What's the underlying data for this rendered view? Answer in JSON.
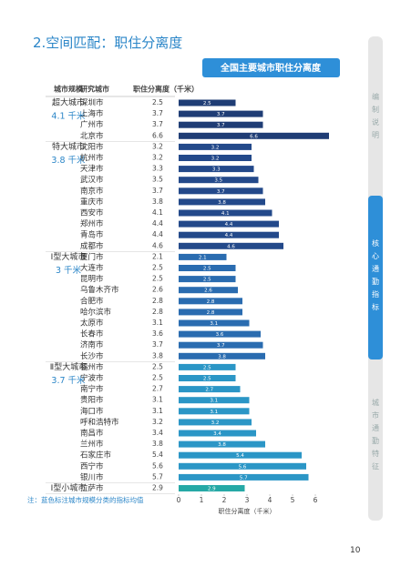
{
  "header": {
    "title": "2.空间匹配：职住分离度"
  },
  "chart_data": {
    "type": "bar",
    "title": "全国主要城市职住分离度",
    "column_headers": [
      "城市规模",
      "研究城市",
      "职住分离度（千米）"
    ],
    "groups": [
      {
        "name": "超大城市",
        "mean_label": "4.1 千米",
        "color": "#1f3d75",
        "categories": [
          "深圳市",
          "上海市",
          "广州市",
          "北京市"
        ],
        "values": [
          2.5,
          3.7,
          3.7,
          6.6
        ]
      },
      {
        "name": "特大城市",
        "mean_label": "3.8 千米",
        "color": "#23498a",
        "categories": [
          "沈阳市",
          "杭州市",
          "天津市",
          "武汉市",
          "南京市",
          "重庆市",
          "西安市",
          "郑州市",
          "青岛市",
          "成都市"
        ],
        "values": [
          3.2,
          3.2,
          3.3,
          3.5,
          3.7,
          3.8,
          4.1,
          4.4,
          4.4,
          4.6
        ]
      },
      {
        "name": "Ⅰ型大城市",
        "mean_label": "3 千米",
        "color": "#2a6cb0",
        "categories": [
          "厦门市",
          "大连市",
          "昆明市",
          "乌鲁木齐市",
          "合肥市",
          "哈尔滨市",
          "太原市",
          "长春市",
          "济南市",
          "长沙市"
        ],
        "values": [
          2.1,
          2.5,
          2.5,
          2.6,
          2.8,
          2.8,
          3.1,
          3.6,
          3.7,
          3.8
        ]
      },
      {
        "name": "Ⅱ型大城市",
        "mean_label": "3.7 千米",
        "color": "#2b96c6",
        "categories": [
          "福州市",
          "宁波市",
          "南宁市",
          "贵阳市",
          "海口市",
          "呼和浩特市",
          "南昌市",
          "兰州市",
          "石家庄市",
          "西宁市",
          "银川市"
        ],
        "values": [
          2.5,
          2.5,
          2.7,
          3.1,
          3.1,
          3.2,
          3.4,
          3.8,
          5.4,
          5.6,
          5.7
        ]
      },
      {
        "name": "Ⅰ型小城市",
        "color": "#26a9a6",
        "categories": [
          "拉萨市"
        ],
        "values": [
          2.9
        ]
      }
    ],
    "xlim": [
      0,
      6.8
    ],
    "xticks": [
      0,
      1,
      2,
      3,
      4,
      5,
      6
    ],
    "xlabel": "职住分离度（千米）",
    "note": "注：蓝色标注城市规模分类的指标均值"
  },
  "sidebar": {
    "tabs": [
      "编制说明",
      "核心通勤指标",
      "城市通勤特征"
    ],
    "active": 1
  },
  "page_number": "10"
}
